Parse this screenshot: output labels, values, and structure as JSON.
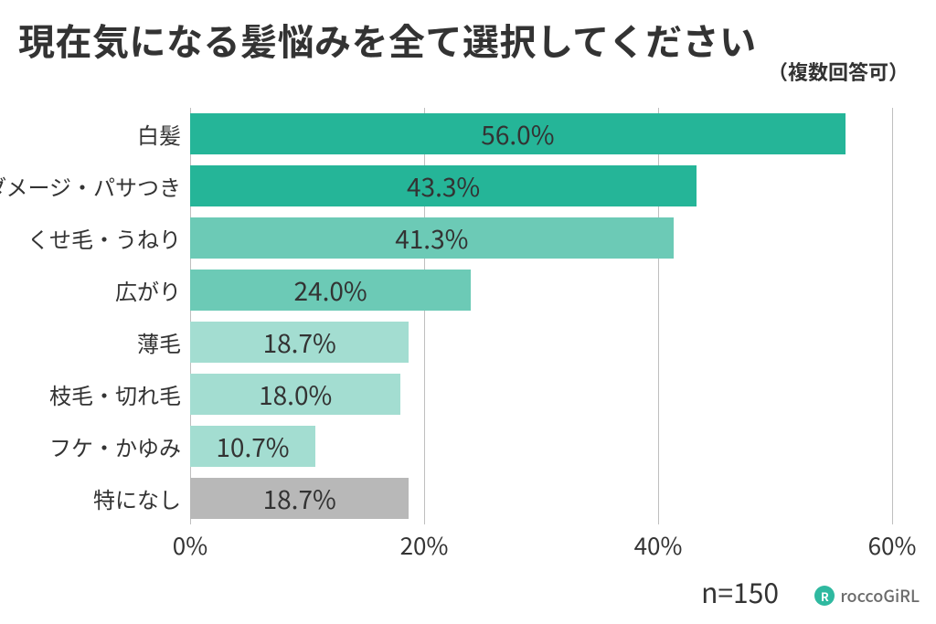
{
  "title": "現在気になる髪悩みを全て選択してください",
  "subtitle": "（複数回答可）",
  "sample_label": "n=150",
  "brand": "roccoGiRL",
  "chart": {
    "type": "bar",
    "orientation": "horizontal",
    "xmin": 0,
    "xmax": 60,
    "xticks": [
      0,
      20,
      40,
      60
    ],
    "xtick_labels": [
      "0%",
      "20%",
      "40%",
      "60%"
    ],
    "grid_color": "#bfbfbf",
    "background_color": "#ffffff",
    "value_fontsize": 28,
    "label_fontsize": 24,
    "tick_fontsize": 26,
    "title_fontsize": 40,
    "bars": [
      {
        "label": "白髪",
        "value": 56.0,
        "display": "56.0%",
        "color": "#25b598"
      },
      {
        "label": "ダメージ・パサつき",
        "value": 43.3,
        "display": "43.3%",
        "color": "#25b598"
      },
      {
        "label": "くせ毛・うねり",
        "value": 41.3,
        "display": "41.3%",
        "color": "#6ccab6"
      },
      {
        "label": "広がり",
        "value": 24.0,
        "display": "24.0%",
        "color": "#6ccab6"
      },
      {
        "label": "薄毛",
        "value": 18.7,
        "display": "18.7%",
        "color": "#a3ddd1"
      },
      {
        "label": "枝毛・切れ毛",
        "value": 18.0,
        "display": "18.0%",
        "color": "#a3ddd1"
      },
      {
        "label": "フケ・かゆみ",
        "value": 10.7,
        "display": "10.7%",
        "color": "#a3ddd1"
      },
      {
        "label": "特になし",
        "value": 18.7,
        "display": "18.7%",
        "color": "#b8b8b8"
      }
    ]
  }
}
